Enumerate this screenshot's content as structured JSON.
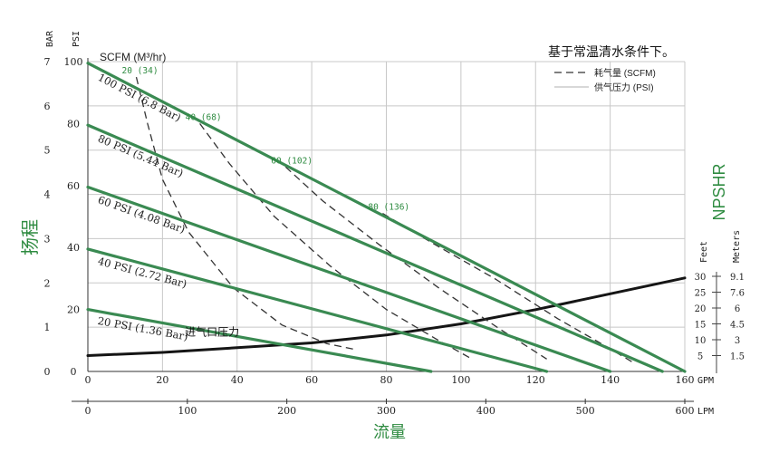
{
  "chart_data": {
    "type": "line",
    "title": "基于常温清水条件下。",
    "colors": {
      "curve": "#3a8a52",
      "npshr": "#151515",
      "label_green": "#2e8b40",
      "grid": "#c8c8c8",
      "text": "#222222"
    },
    "legend": {
      "position": "top-right",
      "items": [
        {
          "label": "耗气量 (SCFM)",
          "style": "dashed"
        },
        {
          "label": "供气压力 (PSI)",
          "style": "thin-solid"
        }
      ]
    },
    "axes": {
      "x_gpm": {
        "range": [
          0,
          160
        ],
        "ticks": [
          "0",
          "20",
          "40",
          "60",
          "80",
          "100",
          "120",
          "140",
          "160"
        ],
        "unit": "GPM"
      },
      "x_lpm": {
        "range": [
          0,
          600
        ],
        "ticks": [
          "0",
          "100",
          "200",
          "300",
          "400",
          "500",
          "600"
        ],
        "unit": "LPM",
        "label": "流量"
      },
      "y_psi": {
        "range": [
          0,
          100
        ],
        "ticks": [
          "0",
          "20",
          "40",
          "60",
          "80",
          "100"
        ],
        "unit": "PSI",
        "label": "扬程"
      },
      "y_bar": {
        "range": [
          0,
          7
        ],
        "ticks": [
          "0",
          "1",
          "2",
          "3",
          "4",
          "5",
          "6",
          "7"
        ],
        "unit": "BAR"
      },
      "npshr_feet": {
        "unit": "Feet",
        "ticks": [
          "5",
          "10",
          "15",
          "20",
          "25",
          "30"
        ]
      },
      "npshr_meters": {
        "unit": "Meters",
        "ticks": [
          "1.5",
          "3",
          "4.5",
          "6",
          "7.6",
          "9.1"
        ]
      },
      "npshr_label": "NPSHR",
      "scfm_label": "SCFM (M³/hr)"
    },
    "grid": true,
    "series": [
      {
        "name": "100 PSI (6.8 Bar)",
        "kind": "pressure",
        "x": [
          0,
          160
        ],
        "y": [
          99.5,
          0
        ]
      },
      {
        "name": "80 PSI (5.44 Bar)",
        "kind": "pressure",
        "x": [
          0,
          154
        ],
        "y": [
          79.5,
          0
        ]
      },
      {
        "name": "60 PSI (4.08 Bar)",
        "kind": "pressure",
        "x": [
          0,
          140
        ],
        "y": [
          59.5,
          0
        ]
      },
      {
        "name": "40 PSI (2.72 Bar)",
        "kind": "pressure",
        "x": [
          0,
          123
        ],
        "y": [
          39.5,
          0
        ]
      },
      {
        "name": "20 PSI (1.36 Bar)",
        "kind": "pressure",
        "x": [
          0,
          92
        ],
        "y": [
          20,
          0
        ]
      },
      {
        "name": "20 (34)",
        "kind": "air",
        "x": [
          13,
          16,
          20,
          27,
          39,
          52,
          64,
          72
        ],
        "y": [
          95,
          80,
          62,
          45,
          27,
          15,
          9,
          7
        ]
      },
      {
        "name": "40 (68)",
        "kind": "air",
        "x": [
          30,
          38,
          50,
          65,
          80,
          94,
          103
        ],
        "y": [
          80,
          67,
          50,
          34,
          20,
          10,
          4
        ]
      },
      {
        "name": "60 (102)",
        "kind": "air",
        "x": [
          53,
          63,
          78,
          94,
          110,
          123
        ],
        "y": [
          66,
          55,
          41,
          27,
          14,
          4
        ]
      },
      {
        "name": "80 (136)",
        "kind": "air",
        "x": [
          79,
          93,
          109,
          126,
          139,
          146
        ],
        "y": [
          51,
          41,
          30,
          17,
          8,
          3
        ]
      },
      {
        "name": "进气口压力",
        "kind": "npshr",
        "x": [
          0,
          20,
          40,
          60,
          80,
          100,
          120,
          140,
          160
        ],
        "y": [
          5,
          6,
          7.5,
          9,
          11.5,
          15,
          19.5,
          24.5,
          29.5
        ]
      }
    ]
  }
}
